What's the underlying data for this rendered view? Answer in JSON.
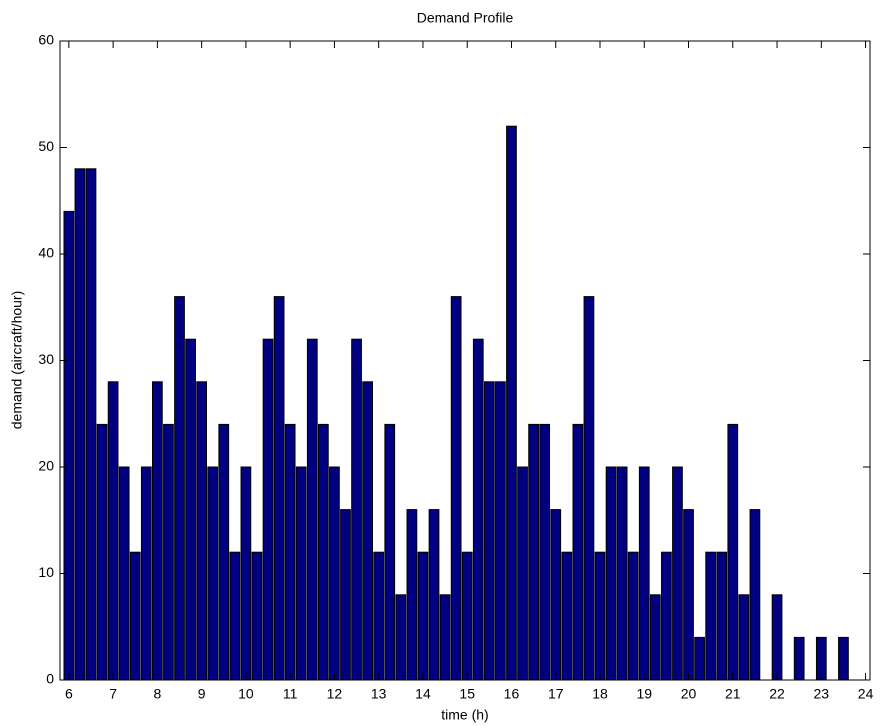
{
  "chart_data": {
    "type": "bar",
    "title": "Demand Profile",
    "x_label": "time (h)",
    "y_label": "demand (aircraft/hour)",
    "x": [
      6,
      6.25,
      6.5,
      6.75,
      7,
      7.25,
      7.5,
      7.75,
      8,
      8.25,
      8.5,
      8.75,
      9,
      9.25,
      9.5,
      9.75,
      10,
      10.25,
      10.5,
      10.75,
      11,
      11.25,
      11.5,
      11.75,
      12,
      12.25,
      12.5,
      12.75,
      13,
      13.25,
      13.5,
      13.75,
      14,
      14.25,
      14.5,
      14.75,
      15,
      15.25,
      15.5,
      15.75,
      16,
      16.25,
      16.5,
      16.75,
      17,
      17.25,
      17.5,
      17.75,
      18,
      18.25,
      18.5,
      18.75,
      19,
      19.25,
      19.5,
      19.75,
      20,
      20.25,
      20.5,
      20.75,
      21,
      21.25,
      21.5,
      21.75,
      22,
      22.25,
      22.5,
      22.75,
      23,
      23.25,
      23.5
    ],
    "values": [
      44,
      48,
      48,
      24,
      28,
      20,
      12,
      20,
      28,
      24,
      36,
      32,
      28,
      20,
      24,
      12,
      20,
      12,
      32,
      36,
      24,
      20,
      32,
      24,
      20,
      16,
      32,
      28,
      12,
      24,
      8,
      16,
      12,
      16,
      8,
      36,
      12,
      32,
      28,
      28,
      52,
      20,
      24,
      24,
      16,
      12,
      24,
      36,
      12,
      20,
      20,
      12,
      20,
      8,
      12,
      20,
      16,
      4,
      12,
      12,
      24,
      8,
      16,
      0,
      8,
      0,
      4,
      0,
      4,
      0,
      4
    ],
    "color": "#000080",
    "xlim": [
      5.8,
      24.1
    ],
    "xticks": [
      6,
      7,
      8,
      9,
      10,
      11,
      12,
      13,
      14,
      15,
      16,
      17,
      18,
      19,
      20,
      21,
      22,
      23,
      24
    ],
    "ylim": [
      0,
      60
    ],
    "yticks": [
      0,
      10,
      20,
      30,
      40,
      50,
      60
    ]
  }
}
